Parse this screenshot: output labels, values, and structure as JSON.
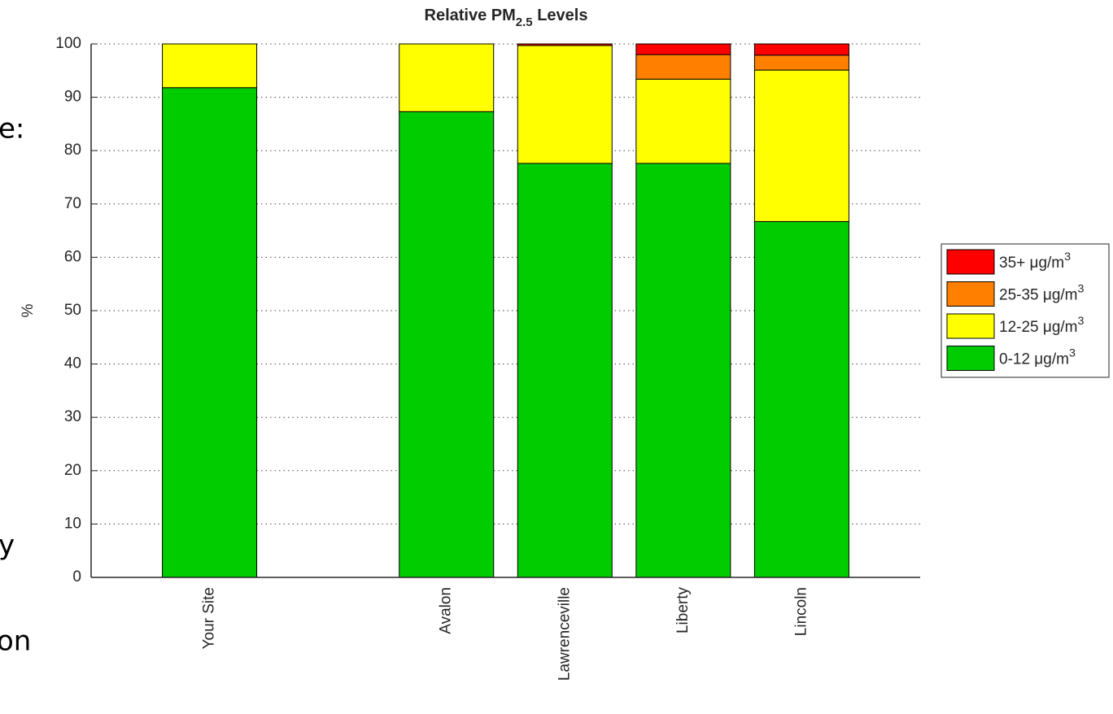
{
  "slide_fragments": [
    "e:",
    "y",
    "on"
  ],
  "chart_data": {
    "type": "stacked-bar",
    "title": "Relative PM2.5 Levels",
    "ylabel": "%",
    "categories": [
      "Your Site",
      null,
      "Avalon",
      "Lawrenceville",
      "Liberty",
      "Lincoln"
    ],
    "series": [
      {
        "name": "0-12 μg/m3",
        "color": "#00cc00",
        "values": [
          91.8,
          null,
          87.3,
          77.6,
          77.6,
          66.7
        ]
      },
      {
        "name": "12-25 μg/m3",
        "color": "#ffff00",
        "values": [
          8.2,
          null,
          12.7,
          22.1,
          15.8,
          28.4
        ]
      },
      {
        "name": "25-35 μg/m3",
        "color": "#ff8000",
        "values": [
          0,
          null,
          0,
          0,
          4.6,
          2.8
        ]
      },
      {
        "name": "35+ μg/m3",
        "color": "#ff0000",
        "values": [
          0,
          null,
          0,
          0.3,
          2.0,
          2.1
        ]
      }
    ],
    "ylim": [
      0,
      100
    ],
    "yticks": [
      0,
      10,
      20,
      30,
      40,
      50,
      60,
      70,
      80,
      90,
      100
    ],
    "grid": true,
    "legend": "right"
  }
}
